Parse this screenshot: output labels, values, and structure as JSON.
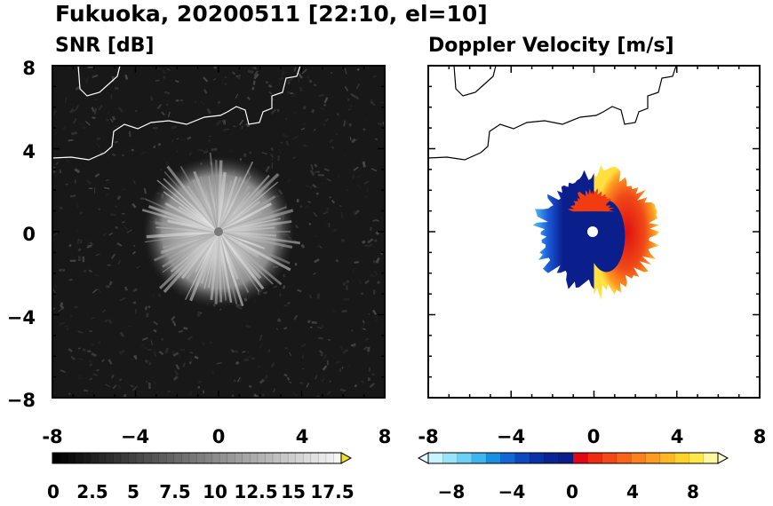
{
  "title": "Fukuoka, 20200511 [22:10, el=10]",
  "colors": {
    "snr_background": "#181818",
    "coast_on_snr": "#ffffff",
    "coast_on_velocity": "#000000",
    "velocity_negative": "#0a1e8c",
    "velocity_positive": "#f03c10",
    "velocity_high": "#ffd020"
  },
  "chart_data": [
    {
      "type": "heatmap",
      "name": "snr",
      "title": "SNR [dB]",
      "xlim": [
        -8,
        8
      ],
      "ylim": [
        -8,
        8
      ],
      "xticks": [
        "-8",
        "−4",
        "0",
        "4",
        "8"
      ],
      "yticks": [
        "8",
        "4",
        "0",
        "−4",
        "−8"
      ],
      "grid": false,
      "colorbar": {
        "range": [
          0,
          19
        ],
        "extend": "max",
        "tick_labels": [
          "0",
          "2.5",
          "5",
          "7.5",
          "10",
          "12.5",
          "15",
          "17.5"
        ]
      },
      "echo": {
        "center": [
          0,
          0
        ],
        "radius_km": 3.2
      }
    },
    {
      "type": "heatmap",
      "name": "doppler_velocity",
      "title": "Doppler Velocity [m/s]",
      "xlim": [
        -8,
        8
      ],
      "ylim": [
        -8,
        8
      ],
      "xticks": [
        "-8",
        "−4",
        "0",
        "4",
        "8"
      ],
      "yticks": [],
      "grid": false,
      "colorbar": {
        "range": [
          -10,
          10
        ],
        "extend": "both",
        "tick_labels": [
          "−8",
          "−4",
          "0",
          "4",
          "8"
        ]
      },
      "echo": {
        "center": [
          0,
          0
        ],
        "radius_km": 2.8,
        "negative_side": "west",
        "positive_side": "east"
      }
    }
  ]
}
